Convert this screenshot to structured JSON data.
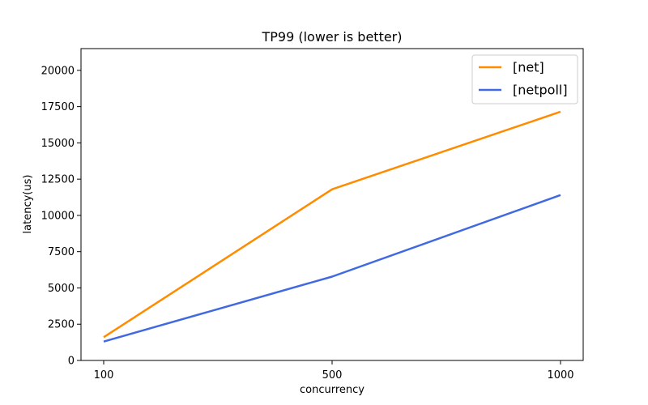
{
  "chart_data": {
    "type": "line",
    "title": "TP99 (lower is better)",
    "xlabel": "concurrency",
    "ylabel": "latency(us)",
    "categories": [
      "100",
      "500",
      "1000"
    ],
    "ylim": [
      0,
      21500
    ],
    "yticks": [
      0,
      2500,
      5000,
      7500,
      10000,
      12500,
      15000,
      17500,
      20000
    ],
    "grid": false,
    "legend_position": "top-right",
    "series": [
      {
        "name": "[net]",
        "color": "#ff8c00",
        "values": [
          1600,
          11800,
          17150
        ]
      },
      {
        "name": "[netpoll]",
        "color": "#4169e1",
        "values": [
          1300,
          5780,
          11400
        ]
      }
    ]
  }
}
